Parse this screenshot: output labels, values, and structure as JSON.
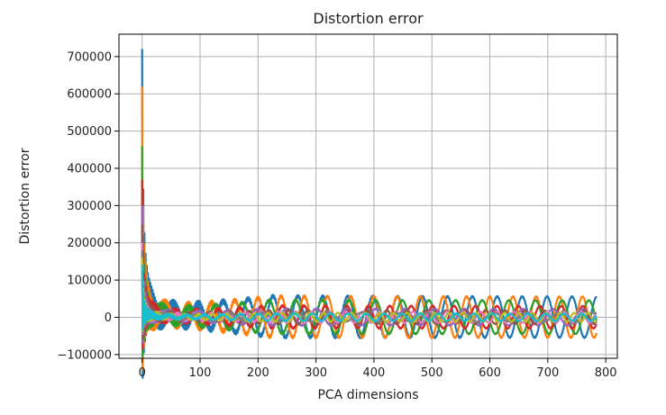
{
  "chart_data": {
    "type": "line",
    "title": "Distortion error",
    "xlabel": "PCA dimensions",
    "ylabel": "Distortion error",
    "xlim": [
      -40,
      820
    ],
    "ylim": [
      -110000,
      760000
    ],
    "x_ticks": [
      {
        "value": 0,
        "label": "0"
      },
      {
        "value": 100,
        "label": "100"
      },
      {
        "value": 200,
        "label": "200"
      },
      {
        "value": 300,
        "label": "300"
      },
      {
        "value": 400,
        "label": "400"
      },
      {
        "value": 500,
        "label": "500"
      },
      {
        "value": 600,
        "label": "600"
      },
      {
        "value": 700,
        "label": "700"
      },
      {
        "value": 800,
        "label": "800"
      }
    ],
    "y_ticks": [
      {
        "value": -100000,
        "label": "−100000"
      },
      {
        "value": 0,
        "label": "0"
      },
      {
        "value": 100000,
        "label": "100000"
      },
      {
        "value": 200000,
        "label": "200000"
      },
      {
        "value": 300000,
        "label": "300000"
      },
      {
        "value": 400000,
        "label": "400000"
      },
      {
        "value": 500000,
        "label": "500000"
      },
      {
        "value": 600000,
        "label": "600000"
      },
      {
        "value": 700000,
        "label": "700000"
      }
    ],
    "grid": true,
    "x_range": [
      0,
      784
    ],
    "series": [
      {
        "color": "#1f77b4",
        "peak": 720000,
        "osc_amp": 55000,
        "osc_period": 43,
        "phase": 0.0
      },
      {
        "color": "#ff7f0e",
        "peak": 620000,
        "osc_amp": 55000,
        "osc_period": 40,
        "phase": 1.6
      },
      {
        "color": "#2ca02c",
        "peak": 460000,
        "osc_amp": 45000,
        "osc_period": 46,
        "phase": 3.1
      },
      {
        "color": "#d62728",
        "peak": 370000,
        "osc_amp": 30000,
        "osc_period": 37,
        "phase": 4.4
      },
      {
        "color": "#9467bd",
        "peak": 300000,
        "osc_amp": 22000,
        "osc_period": 51,
        "phase": 2.2
      },
      {
        "color": "#8c564b",
        "peak": 250000,
        "osc_amp": 18000,
        "osc_period": 34,
        "phase": 5.2
      },
      {
        "color": "#e377c2",
        "peak": 200000,
        "osc_amp": 15000,
        "osc_period": 29,
        "phase": 0.8
      },
      {
        "color": "#7f7f7f",
        "peak": 180000,
        "osc_amp": 12000,
        "osc_period": 57,
        "phase": 3.8
      },
      {
        "color": "#bcbd22",
        "peak": 160000,
        "osc_amp": 12000,
        "osc_period": 24,
        "phase": 1.2
      },
      {
        "color": "#17becf",
        "peak": 140000,
        "osc_amp": 10000,
        "osc_period": 31,
        "phase": 4.9
      }
    ]
  }
}
